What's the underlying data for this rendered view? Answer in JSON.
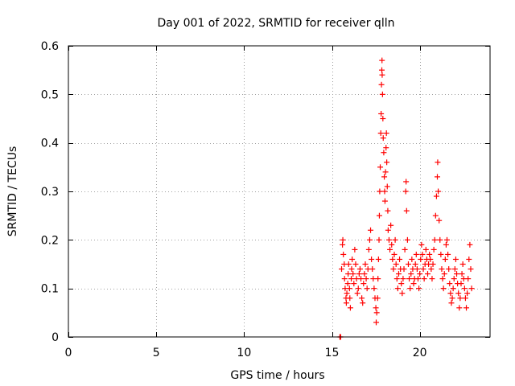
{
  "chart_data": {
    "type": "scatter",
    "title": "Day 001 of 2022, SRMTID for receiver qlln",
    "xlabel": "GPS time / hours",
    "ylabel": "SRMTID / TECUs",
    "xlim": [
      0,
      24
    ],
    "ylim": [
      0,
      0.6
    ],
    "xticks": [
      0,
      5,
      10,
      15,
      20
    ],
    "xtick_labels": [
      "0",
      "5",
      "10",
      "15",
      "20"
    ],
    "yticks": [
      0,
      0.1,
      0.2,
      0.3,
      0.4,
      0.5,
      0.6
    ],
    "ytick_labels": [
      "0",
      "0.1",
      "0.2",
      "0.3",
      "0.4",
      "0.5",
      "0.6"
    ],
    "grid": true,
    "marker": "+",
    "series": [
      {
        "name": "SRMTID",
        "color": "#ff0000",
        "points": [
          [
            15.45,
            0.0
          ],
          [
            15.5,
            0.0
          ],
          [
            15.55,
            0.14
          ],
          [
            15.6,
            0.19
          ],
          [
            15.62,
            0.2
          ],
          [
            15.65,
            0.17
          ],
          [
            15.7,
            0.15
          ],
          [
            15.72,
            0.12
          ],
          [
            15.75,
            0.1
          ],
          [
            15.8,
            0.08
          ],
          [
            15.82,
            0.07
          ],
          [
            15.85,
            0.09
          ],
          [
            15.9,
            0.11
          ],
          [
            15.92,
            0.13
          ],
          [
            15.95,
            0.15
          ],
          [
            16.0,
            0.1
          ],
          [
            16.02,
            0.08
          ],
          [
            16.05,
            0.06
          ],
          [
            16.1,
            0.12
          ],
          [
            16.12,
            0.14
          ],
          [
            16.15,
            0.16
          ],
          [
            16.2,
            0.13
          ],
          [
            16.25,
            0.11
          ],
          [
            16.3,
            0.18
          ],
          [
            16.35,
            0.15
          ],
          [
            16.4,
            0.12
          ],
          [
            16.45,
            0.09
          ],
          [
            16.5,
            0.1
          ],
          [
            16.55,
            0.13
          ],
          [
            16.6,
            0.14
          ],
          [
            16.65,
            0.12
          ],
          [
            16.7,
            0.08
          ],
          [
            16.75,
            0.07
          ],
          [
            16.8,
            0.11
          ],
          [
            16.85,
            0.13
          ],
          [
            16.9,
            0.15
          ],
          [
            16.95,
            0.12
          ],
          [
            17.0,
            0.1
          ],
          [
            17.05,
            0.14
          ],
          [
            17.1,
            0.18
          ],
          [
            17.15,
            0.2
          ],
          [
            17.2,
            0.22
          ],
          [
            17.25,
            0.16
          ],
          [
            17.3,
            0.14
          ],
          [
            17.35,
            0.12
          ],
          [
            17.4,
            0.1
          ],
          [
            17.45,
            0.08
          ],
          [
            17.5,
            0.06
          ],
          [
            17.52,
            0.03
          ],
          [
            17.55,
            0.05
          ],
          [
            17.6,
            0.08
          ],
          [
            17.62,
            0.12
          ],
          [
            17.65,
            0.16
          ],
          [
            17.68,
            0.2
          ],
          [
            17.7,
            0.25
          ],
          [
            17.72,
            0.3
          ],
          [
            17.75,
            0.35
          ],
          [
            17.78,
            0.42
          ],
          [
            17.8,
            0.46
          ],
          [
            17.82,
            0.52
          ],
          [
            17.84,
            0.55
          ],
          [
            17.85,
            0.57
          ],
          [
            17.86,
            0.54
          ],
          [
            17.88,
            0.5
          ],
          [
            17.9,
            0.45
          ],
          [
            17.92,
            0.41
          ],
          [
            17.95,
            0.38
          ],
          [
            17.98,
            0.33
          ],
          [
            18.0,
            0.3
          ],
          [
            18.02,
            0.28
          ],
          [
            18.05,
            0.34
          ],
          [
            18.08,
            0.39
          ],
          [
            18.1,
            0.42
          ],
          [
            18.12,
            0.36
          ],
          [
            18.15,
            0.31
          ],
          [
            18.18,
            0.26
          ],
          [
            18.2,
            0.22
          ],
          [
            18.25,
            0.2
          ],
          [
            18.3,
            0.18
          ],
          [
            18.35,
            0.23
          ],
          [
            18.4,
            0.19
          ],
          [
            18.45,
            0.16
          ],
          [
            18.5,
            0.14
          ],
          [
            18.55,
            0.17
          ],
          [
            18.6,
            0.2
          ],
          [
            18.65,
            0.15
          ],
          [
            18.7,
            0.12
          ],
          [
            18.75,
            0.1
          ],
          [
            18.8,
            0.13
          ],
          [
            18.85,
            0.16
          ],
          [
            18.9,
            0.14
          ],
          [
            18.95,
            0.11
          ],
          [
            19.0,
            0.09
          ],
          [
            19.05,
            0.12
          ],
          [
            19.1,
            0.14
          ],
          [
            19.15,
            0.18
          ],
          [
            19.2,
            0.3
          ],
          [
            19.22,
            0.32
          ],
          [
            19.25,
            0.26
          ],
          [
            19.3,
            0.2
          ],
          [
            19.35,
            0.15
          ],
          [
            19.4,
            0.12
          ],
          [
            19.45,
            0.1
          ],
          [
            19.5,
            0.13
          ],
          [
            19.55,
            0.16
          ],
          [
            19.6,
            0.14
          ],
          [
            19.65,
            0.11
          ],
          [
            19.7,
            0.12
          ],
          [
            19.75,
            0.15
          ],
          [
            19.8,
            0.17
          ],
          [
            19.85,
            0.14
          ],
          [
            19.9,
            0.12
          ],
          [
            19.95,
            0.1
          ],
          [
            20.0,
            0.13
          ],
          [
            20.05,
            0.16
          ],
          [
            20.1,
            0.19
          ],
          [
            20.15,
            0.17
          ],
          [
            20.2,
            0.14
          ],
          [
            20.25,
            0.12
          ],
          [
            20.3,
            0.15
          ],
          [
            20.35,
            0.18
          ],
          [
            20.4,
            0.16
          ],
          [
            20.45,
            0.13
          ],
          [
            20.5,
            0.15
          ],
          [
            20.55,
            0.17
          ],
          [
            20.6,
            0.16
          ],
          [
            20.65,
            0.14
          ],
          [
            20.7,
            0.12
          ],
          [
            20.75,
            0.15
          ],
          [
            20.8,
            0.18
          ],
          [
            20.85,
            0.2
          ],
          [
            20.9,
            0.25
          ],
          [
            20.95,
            0.29
          ],
          [
            21.0,
            0.33
          ],
          [
            21.02,
            0.36
          ],
          [
            21.05,
            0.3
          ],
          [
            21.1,
            0.24
          ],
          [
            21.15,
            0.2
          ],
          [
            21.2,
            0.17
          ],
          [
            21.25,
            0.14
          ],
          [
            21.3,
            0.12
          ],
          [
            21.35,
            0.1
          ],
          [
            21.4,
            0.13
          ],
          [
            21.45,
            0.16
          ],
          [
            21.5,
            0.19
          ],
          [
            21.55,
            0.2
          ],
          [
            21.6,
            0.17
          ],
          [
            21.65,
            0.14
          ],
          [
            21.7,
            0.11
          ],
          [
            21.75,
            0.09
          ],
          [
            21.8,
            0.07
          ],
          [
            21.85,
            0.08
          ],
          [
            21.9,
            0.1
          ],
          [
            21.95,
            0.12
          ],
          [
            22.0,
            0.14
          ],
          [
            22.05,
            0.16
          ],
          [
            22.1,
            0.13
          ],
          [
            22.15,
            0.11
          ],
          [
            22.2,
            0.09
          ],
          [
            22.25,
            0.06
          ],
          [
            22.3,
            0.08
          ],
          [
            22.35,
            0.11
          ],
          [
            22.4,
            0.13
          ],
          [
            22.45,
            0.15
          ],
          [
            22.5,
            0.12
          ],
          [
            22.55,
            0.1
          ],
          [
            22.6,
            0.08
          ],
          [
            22.65,
            0.06
          ],
          [
            22.7,
            0.09
          ],
          [
            22.75,
            0.12
          ],
          [
            22.8,
            0.16
          ],
          [
            22.85,
            0.19
          ],
          [
            22.9,
            0.14
          ],
          [
            22.95,
            0.1
          ]
        ]
      }
    ]
  }
}
